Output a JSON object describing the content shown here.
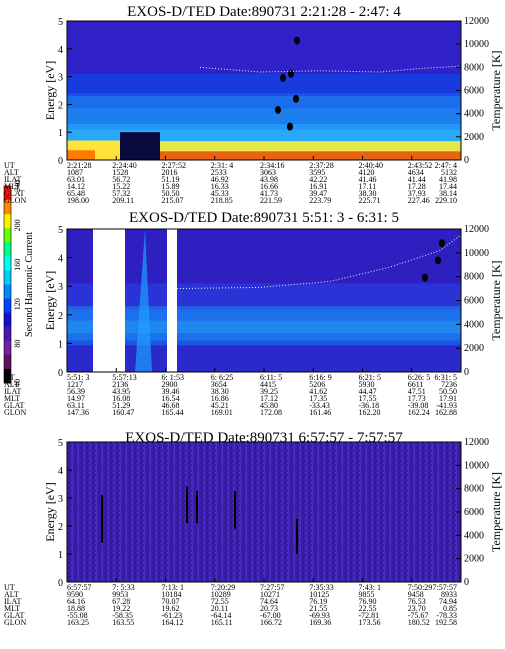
{
  "chart_data": [
    {
      "type": "heatmap",
      "title": "EXOS-D/TED   Date:890731   2:21:28 - 2:47: 4",
      "ylabel": "Energy [eV]",
      "y2label": "Temperature [K]",
      "ylim": [
        0,
        5
      ],
      "y2lim": [
        0,
        12000
      ],
      "yticks": [
        "0",
        "1",
        "2",
        "3",
        "4",
        "5"
      ],
      "y2ticks": [
        "0",
        "2000",
        "4000",
        "6000",
        "8000",
        "10000",
        "12000"
      ],
      "table_rows": [
        "UT",
        "ALT",
        "ILAT",
        "MLT",
        "GLAT",
        "GLON"
      ],
      "table_cols": [
        [
          "2:21:28",
          "1087",
          "63.01",
          "14.12",
          "65.48",
          "198.00"
        ],
        [
          "2:24:40",
          "1528",
          "56.72",
          "15.22",
          "57.32",
          "209.11"
        ],
        [
          "2:27:52",
          "2016",
          "51.19",
          "15.89",
          "50.50",
          "215.07"
        ],
        [
          "2:31: 4",
          "2533",
          "46.92",
          "16.33",
          "45.33",
          "218.85"
        ],
        [
          "2:34:16",
          "3063",
          "43.98",
          "16.66",
          "41.73",
          "221.59"
        ],
        [
          "2:37:28",
          "3595",
          "42.22",
          "16.91",
          "39.47",
          "223.79"
        ],
        [
          "2:40:40",
          "4120",
          "41.46",
          "17.11",
          "38.30",
          "225.71"
        ],
        [
          "2:43:52",
          "4634",
          "41.44",
          "17.28",
          "37.93",
          "227.46"
        ],
        [
          "2:47: 4",
          "5132",
          "41.98",
          "17.44",
          "38.14",
          "229.10"
        ]
      ]
    },
    {
      "type": "heatmap",
      "title": "EXOS-D/TED   Date:890731   5:51: 3 - 6:31: 5",
      "ylabel": "Energy [eV]",
      "y2label": "Temperature [K]",
      "ylim": [
        0,
        5
      ],
      "y2lim": [
        0,
        12000
      ],
      "yticks": [
        "0",
        "1",
        "2",
        "3",
        "4",
        "5"
      ],
      "y2ticks": [
        "0",
        "2000",
        "4000",
        "6000",
        "8000",
        "10000",
        "12000"
      ],
      "colorbar": {
        "label": "Second Harmonic Current",
        "ticks": [
          "40",
          "80",
          "120",
          "160",
          "200",
          "240"
        ]
      },
      "table_rows": [
        "UT",
        "ALT",
        "ILAT",
        "MLT",
        "GLAT",
        "GLON"
      ],
      "table_cols": [
        [
          "5:51: 3",
          "1217",
          "56.39",
          "14.97",
          "63.11",
          "147.36"
        ],
        [
          "5:57:13",
          "2136",
          "43.95",
          "16.08",
          "51.29",
          "160.47"
        ],
        [
          "6: 1:53",
          "2900",
          "39.46",
          "16.54",
          "46.68",
          "165.44"
        ],
        [
          "6: 6:25",
          "3654",
          "38.30",
          "16.86",
          "45.21",
          "169.01"
        ],
        [
          "6:11: 5",
          "4415",
          "39.25",
          "17.12",
          "45.80",
          "172.08"
        ],
        [
          "6:16: 9",
          "5206",
          "41.62",
          "17.35",
          "-33.43",
          "161.46"
        ],
        [
          "6:21: 5",
          "5930",
          "44.47",
          "17.55",
          "-36.18",
          "162.20"
        ],
        [
          "6:26: 5",
          "6611",
          "47.51",
          "17.73",
          "-39.08",
          "162.24"
        ],
        [
          "6:31: 5",
          "7236",
          "50.50",
          "17.91",
          "-41.93",
          "162.88"
        ]
      ]
    },
    {
      "type": "heatmap",
      "title": "EXOS-D/TED   Date:890731   6:57:57 - 7:57:57",
      "ylabel": "Energy [eV]",
      "y2label": "Temperature [K]",
      "ylim": [
        0,
        5
      ],
      "y2lim": [
        0,
        12000
      ],
      "yticks": [
        "0",
        "1",
        "2",
        "3",
        "4",
        "5"
      ],
      "y2ticks": [
        "0",
        "2000",
        "4000",
        "6000",
        "8000",
        "10000",
        "12000"
      ],
      "table_rows": [
        "UT",
        "ALT",
        "ILAT",
        "MLT",
        "GLAT",
        "GLON"
      ],
      "table_cols": [
        [
          "6:57:57",
          "9590",
          "64.16",
          "18.88",
          "-55.08",
          "163.25"
        ],
        [
          "7: 5:33",
          "9953",
          "67.28",
          "19.22",
          "-58.35",
          "163.55"
        ],
        [
          "7:13: 1",
          "10184",
          "70.07",
          "19.62",
          "-61.23",
          "164.12"
        ],
        [
          "7:20:29",
          "10289",
          "72.55",
          "20.11",
          "-64.14",
          "165.11"
        ],
        [
          "7:27:57",
          "10271",
          "74.64",
          "20.73",
          "-67.00",
          "166.72"
        ],
        [
          "7:35:33",
          "10125",
          "76.19",
          "21.55",
          "-69.93",
          "169.36"
        ],
        [
          "7:43: 1",
          "9855",
          "76.90",
          "22.55",
          "-72.81",
          "173.56"
        ],
        [
          "7:50:29",
          "9458",
          "76.53",
          "23.70",
          "-75.67",
          "180.52"
        ],
        [
          "7:57:57",
          "8933",
          "74.94",
          "0.85",
          "-78.33",
          "192.58"
        ]
      ]
    }
  ]
}
